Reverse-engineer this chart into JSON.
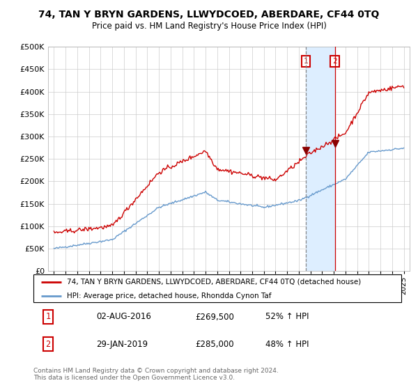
{
  "title": "74, TAN Y BRYN GARDENS, LLWYDCOED, ABERDARE, CF44 0TQ",
  "subtitle": "Price paid vs. HM Land Registry's House Price Index (HPI)",
  "red_label": "74, TAN Y BRYN GARDENS, LLWYDCOED, ABERDARE, CF44 0TQ (detached house)",
  "blue_label": "HPI: Average price, detached house, Rhondda Cynon Taf",
  "transaction1_date": "02-AUG-2016",
  "transaction1_price": "£269,500",
  "transaction1_hpi": "52% ↑ HPI",
  "transaction2_date": "29-JAN-2019",
  "transaction2_price": "£285,000",
  "transaction2_hpi": "48% ↑ HPI",
  "footer": "Contains HM Land Registry data © Crown copyright and database right 2024.\nThis data is licensed under the Open Government Licence v3.0.",
  "red_color": "#cc0000",
  "blue_color": "#6699cc",
  "shade_color": "#ddeeff",
  "marker1_x": 2016.58,
  "marker2_x": 2019.08,
  "marker1_y": 269500,
  "marker2_y": 285000,
  "ylim_min": 0,
  "ylim_max": 500000,
  "xlim_min": 1994.5,
  "xlim_max": 2025.5,
  "yticks": [
    0,
    50000,
    100000,
    150000,
    200000,
    250000,
    300000,
    350000,
    400000,
    450000,
    500000
  ],
  "xtick_start": 1995,
  "xtick_end": 2025
}
